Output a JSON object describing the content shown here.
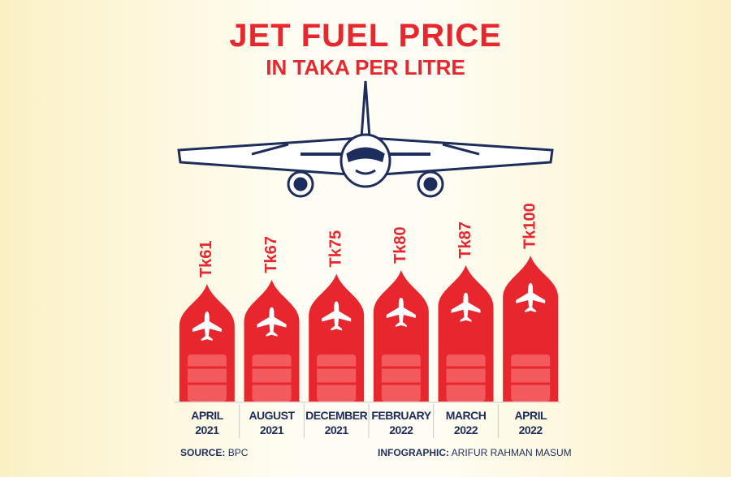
{
  "chart_data": {
    "type": "drop-bar",
    "title": "JET FUEL PRICE",
    "subtitle": "IN TAKA PER LITRE",
    "categories": [
      "APRIL 2021",
      "AUGUST 2021",
      "DECEMBER 2021",
      "FEBRUARY 2022",
      "MARCH 2022",
      "APRIL 2022"
    ],
    "values": [
      61,
      67,
      75,
      80,
      87,
      100
    ],
    "value_labels": [
      "Tk61",
      "Tk67",
      "Tk75",
      "Tk80",
      "Tk87",
      "Tk100"
    ],
    "color": "#e8262d",
    "ylim": [
      -100,
      100
    ],
    "source": {
      "label": "SOURCE:",
      "text": "BPC"
    },
    "credit": {
      "label": "INFOGRAPHIC:",
      "text": "ARIFUR RAHMAN MASUM"
    }
  }
}
